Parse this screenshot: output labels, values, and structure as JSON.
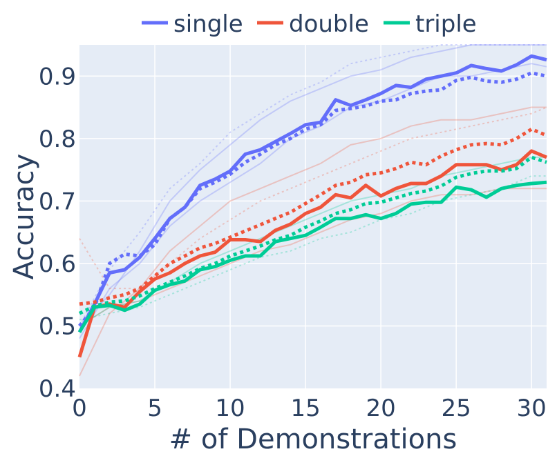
{
  "chart_data": {
    "type": "line",
    "xlabel": "# of Demonstrations",
    "ylabel": "Accuracy",
    "xlim": [
      0,
      31
    ],
    "ylim": [
      0.4,
      0.95
    ],
    "x_ticks": [
      0,
      5,
      10,
      15,
      20,
      25,
      30
    ],
    "y_ticks": [
      0.4,
      0.5,
      0.6,
      0.7,
      0.8,
      0.9
    ],
    "grid": true,
    "legend_position": "top",
    "colors": {
      "plot_bg": "#e5ecf6",
      "grid": "#ffffff",
      "single": "#636efa",
      "double": "#ef553b",
      "triple": "#00cc96"
    },
    "series": [
      {
        "name": "single",
        "style": "solid",
        "color": "#636efa",
        "emphasis": "main",
        "x": [
          0,
          1,
          2,
          3,
          4,
          5,
          6,
          7,
          8,
          9,
          10,
          11,
          12,
          13,
          14,
          15,
          16,
          17,
          18,
          19,
          20,
          21,
          22,
          23,
          24,
          25,
          26,
          27,
          28,
          29,
          30,
          31
        ],
        "y": [
          0.49,
          0.535,
          0.585,
          0.59,
          0.61,
          0.64,
          0.672,
          0.69,
          0.725,
          0.735,
          0.748,
          0.775,
          0.782,
          0.795,
          0.808,
          0.822,
          0.826,
          0.862,
          0.853,
          0.862,
          0.872,
          0.885,
          0.882,
          0.895,
          0.9,
          0.905,
          0.917,
          0.912,
          0.908,
          0.918,
          0.932,
          0.926
        ]
      },
      {
        "name": "",
        "style": "dot",
        "color": "#636efa",
        "emphasis": "main",
        "x": [
          0,
          1,
          2,
          3,
          4,
          5,
          6,
          7,
          8,
          9,
          10,
          11,
          12,
          13,
          14,
          15,
          16,
          17,
          18,
          19,
          20,
          21,
          22,
          23,
          24,
          25,
          26,
          27,
          28,
          29,
          30,
          31
        ],
        "y": [
          0.5,
          0.53,
          0.6,
          0.615,
          0.612,
          0.63,
          0.672,
          0.69,
          0.72,
          0.73,
          0.743,
          0.762,
          0.775,
          0.79,
          0.8,
          0.815,
          0.822,
          0.845,
          0.848,
          0.852,
          0.86,
          0.862,
          0.872,
          0.876,
          0.878,
          0.893,
          0.898,
          0.892,
          0.89,
          0.895,
          0.905,
          0.9
        ]
      },
      {
        "name": "double",
        "style": "solid",
        "color": "#ef553b",
        "emphasis": "main",
        "x": [
          0,
          1,
          2,
          3,
          4,
          5,
          6,
          7,
          8,
          9,
          10,
          11,
          12,
          13,
          14,
          15,
          16,
          17,
          18,
          19,
          20,
          21,
          22,
          23,
          24,
          25,
          26,
          27,
          28,
          29,
          30,
          31
        ],
        "y": [
          0.45,
          0.53,
          0.535,
          0.53,
          0.555,
          0.575,
          0.585,
          0.6,
          0.612,
          0.618,
          0.638,
          0.638,
          0.635,
          0.653,
          0.663,
          0.68,
          0.69,
          0.71,
          0.705,
          0.725,
          0.708,
          0.72,
          0.728,
          0.728,
          0.74,
          0.758,
          0.758,
          0.758,
          0.75,
          0.758,
          0.78,
          0.77
        ]
      },
      {
        "name": "",
        "style": "dot",
        "color": "#ef553b",
        "emphasis": "main",
        "x": [
          0,
          1,
          2,
          3,
          4,
          5,
          6,
          7,
          8,
          9,
          10,
          11,
          12,
          13,
          14,
          15,
          16,
          17,
          18,
          19,
          20,
          21,
          22,
          23,
          24,
          25,
          26,
          27,
          28,
          29,
          30,
          31
        ],
        "y": [
          0.535,
          0.538,
          0.545,
          0.55,
          0.56,
          0.58,
          0.6,
          0.612,
          0.625,
          0.632,
          0.642,
          0.652,
          0.662,
          0.672,
          0.682,
          0.696,
          0.71,
          0.725,
          0.73,
          0.742,
          0.745,
          0.752,
          0.762,
          0.758,
          0.772,
          0.782,
          0.79,
          0.792,
          0.79,
          0.8,
          0.815,
          0.805
        ]
      },
      {
        "name": "triple",
        "style": "solid",
        "color": "#00cc96",
        "emphasis": "main",
        "x": [
          0,
          1,
          2,
          3,
          4,
          5,
          6,
          7,
          8,
          9,
          10,
          11,
          12,
          13,
          14,
          15,
          16,
          17,
          18,
          19,
          20,
          21,
          22,
          23,
          24,
          25,
          26,
          27,
          28,
          29,
          30,
          31
        ],
        "y": [
          0.49,
          0.53,
          0.533,
          0.525,
          0.535,
          0.557,
          0.566,
          0.572,
          0.59,
          0.595,
          0.605,
          0.612,
          0.612,
          0.635,
          0.64,
          0.645,
          0.658,
          0.672,
          0.672,
          0.678,
          0.672,
          0.68,
          0.695,
          0.698,
          0.698,
          0.722,
          0.718,
          0.706,
          0.72,
          0.725,
          0.728,
          0.73
        ]
      },
      {
        "name": "",
        "style": "dot",
        "color": "#00cc96",
        "emphasis": "main",
        "x": [
          0,
          1,
          2,
          3,
          4,
          5,
          6,
          7,
          8,
          9,
          10,
          11,
          12,
          13,
          14,
          15,
          16,
          17,
          18,
          19,
          20,
          21,
          22,
          23,
          24,
          25,
          26,
          27,
          28,
          29,
          30,
          31
        ],
        "y": [
          0.52,
          0.532,
          0.538,
          0.54,
          0.548,
          0.56,
          0.57,
          0.58,
          0.592,
          0.6,
          0.612,
          0.62,
          0.628,
          0.638,
          0.645,
          0.658,
          0.668,
          0.68,
          0.686,
          0.696,
          0.698,
          0.705,
          0.712,
          0.716,
          0.724,
          0.738,
          0.744,
          0.748,
          0.748,
          0.752,
          0.77,
          0.762
        ]
      },
      {
        "name": "",
        "style": "solid",
        "color": "#636efa",
        "emphasis": "faint",
        "x": [
          0,
          2,
          4,
          6,
          8,
          10,
          12,
          14,
          16,
          18,
          20,
          22,
          24,
          26,
          28,
          30,
          31
        ],
        "y": [
          0.5,
          0.55,
          0.62,
          0.7,
          0.75,
          0.79,
          0.83,
          0.86,
          0.88,
          0.9,
          0.91,
          0.93,
          0.94,
          0.95,
          0.95,
          0.95,
          0.95
        ]
      },
      {
        "name": "",
        "style": "solid",
        "color": "#636efa",
        "emphasis": "faint",
        "x": [
          0,
          2,
          4,
          6,
          8,
          10,
          12,
          14,
          16,
          18,
          20,
          22,
          24,
          26,
          28,
          30,
          31
        ],
        "y": [
          0.48,
          0.56,
          0.6,
          0.66,
          0.7,
          0.73,
          0.76,
          0.8,
          0.82,
          0.85,
          0.86,
          0.88,
          0.9,
          0.9,
          0.91,
          0.92,
          0.915
        ]
      },
      {
        "name": "",
        "style": "dot",
        "color": "#636efa",
        "emphasis": "faint",
        "x": [
          0,
          2,
          4,
          6,
          8,
          10,
          12,
          14,
          16,
          18,
          20,
          22,
          24,
          26,
          28,
          30,
          31
        ],
        "y": [
          0.5,
          0.59,
          0.65,
          0.72,
          0.76,
          0.81,
          0.84,
          0.87,
          0.89,
          0.92,
          0.93,
          0.94,
          0.95,
          0.95,
          0.95,
          0.95,
          0.95
        ]
      },
      {
        "name": "",
        "style": "solid",
        "color": "#ef553b",
        "emphasis": "faint",
        "x": [
          0,
          2,
          4,
          6,
          8,
          10,
          12,
          14,
          16,
          18,
          20,
          22,
          24,
          26,
          28,
          30,
          31
        ],
        "y": [
          0.42,
          0.52,
          0.56,
          0.62,
          0.66,
          0.7,
          0.72,
          0.74,
          0.76,
          0.79,
          0.8,
          0.82,
          0.83,
          0.83,
          0.84,
          0.85,
          0.85
        ]
      },
      {
        "name": "",
        "style": "solid",
        "color": "#ef553b",
        "emphasis": "faint",
        "x": [
          0,
          2,
          4,
          6,
          8,
          10,
          12,
          14,
          16,
          18,
          20,
          22,
          24,
          26,
          28,
          30,
          31
        ],
        "y": [
          0.5,
          0.53,
          0.54,
          0.56,
          0.58,
          0.6,
          0.62,
          0.63,
          0.65,
          0.67,
          0.68,
          0.7,
          0.71,
          0.71,
          0.72,
          0.72,
          0.72
        ]
      },
      {
        "name": "",
        "style": "dot",
        "color": "#ef553b",
        "emphasis": "faint",
        "x": [
          0,
          2,
          4,
          6,
          8,
          10,
          12,
          14,
          16,
          18,
          20,
          22,
          24,
          26,
          28,
          30,
          31
        ],
        "y": [
          0.64,
          0.56,
          0.56,
          0.6,
          0.64,
          0.67,
          0.7,
          0.72,
          0.74,
          0.76,
          0.78,
          0.8,
          0.81,
          0.82,
          0.83,
          0.84,
          0.85
        ]
      },
      {
        "name": "",
        "style": "solid",
        "color": "#00cc96",
        "emphasis": "faint",
        "x": [
          0,
          2,
          4,
          6,
          8,
          10,
          12,
          14,
          16,
          18,
          20,
          22,
          24,
          26,
          28,
          30,
          31
        ],
        "y": [
          0.5,
          0.53,
          0.54,
          0.57,
          0.6,
          0.62,
          0.64,
          0.66,
          0.68,
          0.7,
          0.71,
          0.72,
          0.74,
          0.75,
          0.76,
          0.77,
          0.77
        ]
      },
      {
        "name": "",
        "style": "dot",
        "color": "#00cc96",
        "emphasis": "faint",
        "x": [
          0,
          2,
          4,
          6,
          8,
          10,
          12,
          14,
          16,
          18,
          20,
          22,
          24,
          26,
          28,
          30,
          31
        ],
        "y": [
          0.51,
          0.52,
          0.53,
          0.55,
          0.57,
          0.59,
          0.61,
          0.62,
          0.64,
          0.65,
          0.67,
          0.68,
          0.7,
          0.71,
          0.72,
          0.74,
          0.74
        ]
      }
    ]
  }
}
